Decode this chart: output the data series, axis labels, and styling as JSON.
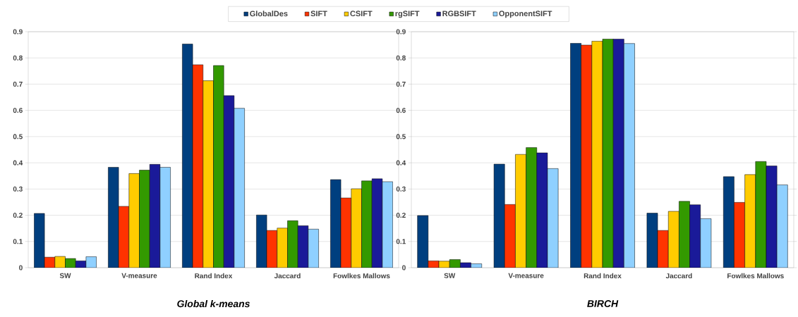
{
  "chart_data": [
    {
      "type": "bar",
      "title": "Global k-means",
      "categories": [
        "SW",
        "V-measure",
        "Rand Index",
        "Jaccard",
        "Fowlkes Mallows"
      ],
      "series": [
        {
          "name": "GlobalDes",
          "color": "#003f7f",
          "values": [
            0.207,
            0.383,
            0.853,
            0.201,
            0.336
          ]
        },
        {
          "name": "SIFT",
          "color": "#ff3300",
          "values": [
            0.04,
            0.234,
            0.774,
            0.142,
            0.266
          ]
        },
        {
          "name": "CSIFT",
          "color": "#ffcc00",
          "values": [
            0.043,
            0.359,
            0.713,
            0.151,
            0.301
          ]
        },
        {
          "name": "rgSIFT",
          "color": "#339900",
          "values": [
            0.035,
            0.372,
            0.771,
            0.179,
            0.331
          ]
        },
        {
          "name": "RGBSIFT",
          "color": "#1a1a99",
          "values": [
            0.026,
            0.394,
            0.656,
            0.16,
            0.339
          ]
        },
        {
          "name": "OpponentSIFT",
          "color": "#8fd0ff",
          "values": [
            0.042,
            0.383,
            0.608,
            0.147,
            0.328
          ]
        }
      ],
      "ylim": [
        0,
        0.9
      ],
      "yticks": [
        0,
        0.1,
        0.2,
        0.3,
        0.4,
        0.5,
        0.6,
        0.7,
        0.8,
        0.9
      ],
      "grid": "y",
      "legend": "top"
    },
    {
      "type": "bar",
      "title": "BIRCH",
      "categories": [
        "SW",
        "V-measure",
        "Rand Index",
        "Jaccard",
        "Fowlkes Mallows"
      ],
      "series": [
        {
          "color": "#003f7f",
          "values": [
            0.199,
            0.395,
            0.856,
            0.208,
            0.347
          ]
        },
        {
          "color": "#ff3300",
          "values": [
            0.026,
            0.241,
            0.849,
            0.142,
            0.249
          ]
        },
        {
          "color": "#ffcc00",
          "values": [
            0.025,
            0.432,
            0.864,
            0.215,
            0.355
          ]
        },
        {
          "color": "#339900",
          "values": [
            0.031,
            0.458,
            0.872,
            0.253,
            0.405
          ]
        },
        {
          "color": "#1a1a99",
          "values": [
            0.019,
            0.438,
            0.872,
            0.24,
            0.388
          ]
        },
        {
          "color": "#8fd0ff",
          "values": [
            0.015,
            0.378,
            0.855,
            0.187,
            0.316
          ]
        }
      ],
      "ylim": [
        0,
        0.9
      ],
      "yticks": [
        0,
        0.1,
        0.2,
        0.3,
        0.4,
        0.5,
        0.6,
        0.7,
        0.8,
        0.9
      ],
      "grid": "y"
    }
  ]
}
